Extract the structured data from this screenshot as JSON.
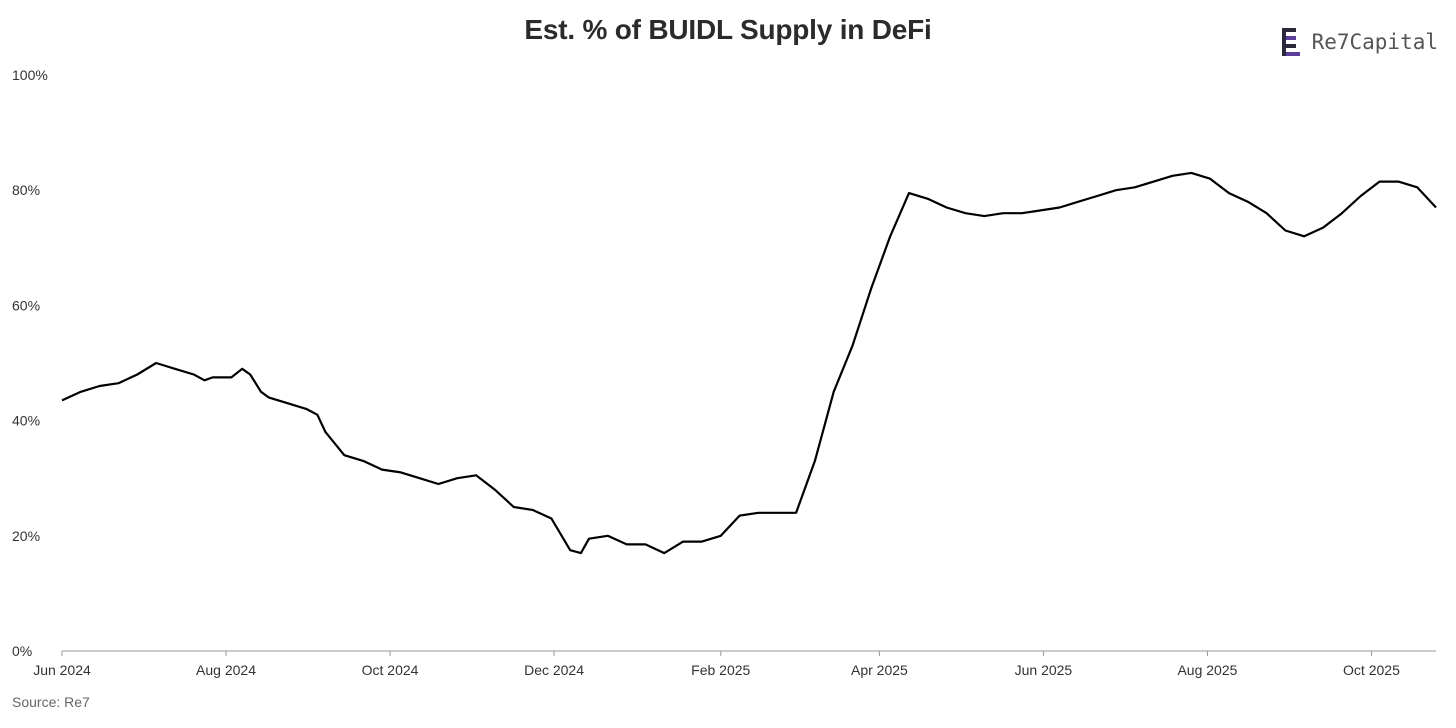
{
  "header": {
    "title": "Est. % of BUIDL Supply in DeFi",
    "brand": "Re7Capital",
    "brand_icon": "re7-logo-icon"
  },
  "footer": {
    "source": "Source: Re7"
  },
  "colors": {
    "line": "#000000",
    "axis": "#999999",
    "logo_purple": "#5b3e9b",
    "logo_dark": "#2a2a3a"
  },
  "chart_data": {
    "type": "line",
    "title": "Est. % of BUIDL Supply in DeFi",
    "xlabel": "",
    "ylabel": "",
    "ylim": [
      0,
      100
    ],
    "y_ticks": [
      "0%",
      "20%",
      "40%",
      "60%",
      "80%",
      "100%"
    ],
    "x_ticks": [
      "Jun 2024",
      "Aug 2024",
      "Oct 2024",
      "Dec 2024",
      "Feb 2025",
      "Apr 2025",
      "Jun 2025",
      "Aug 2025",
      "Oct 2025"
    ],
    "grid": false,
    "legend": "none",
    "series": [
      {
        "x": [
          "2024-06-01",
          "2024-06-08",
          "2024-06-15",
          "2024-06-22",
          "2024-06-29",
          "2024-07-06",
          "2024-07-13",
          "2024-07-20",
          "2024-07-24",
          "2024-07-27",
          "2024-08-03",
          "2024-08-07",
          "2024-08-10",
          "2024-08-14",
          "2024-08-17",
          "2024-08-24",
          "2024-08-31",
          "2024-09-04",
          "2024-09-07",
          "2024-09-14",
          "2024-09-21",
          "2024-09-28",
          "2024-10-05",
          "2024-10-12",
          "2024-10-19",
          "2024-10-26",
          "2024-11-02",
          "2024-11-09",
          "2024-11-16",
          "2024-11-23",
          "2024-11-30",
          "2024-12-07",
          "2024-12-11",
          "2024-12-14",
          "2024-12-21",
          "2024-12-28",
          "2025-01-04",
          "2025-01-11",
          "2025-01-18",
          "2025-01-25",
          "2025-02-01",
          "2025-02-08",
          "2025-02-15",
          "2025-02-22",
          "2025-03-01",
          "2025-03-08",
          "2025-03-15",
          "2025-03-22",
          "2025-03-29",
          "2025-04-05",
          "2025-04-12",
          "2025-04-19",
          "2025-04-26",
          "2025-05-03",
          "2025-05-10",
          "2025-05-17",
          "2025-05-24",
          "2025-05-31",
          "2025-06-07",
          "2025-06-14",
          "2025-06-21",
          "2025-06-28",
          "2025-07-05",
          "2025-07-12",
          "2025-07-19",
          "2025-07-26",
          "2025-08-02",
          "2025-08-09",
          "2025-08-16",
          "2025-08-23",
          "2025-08-30",
          "2025-09-06",
          "2025-09-13",
          "2025-09-20",
          "2025-09-27",
          "2025-10-04",
          "2025-10-11",
          "2025-10-18",
          "2025-10-25"
        ],
        "y": [
          43.5,
          45,
          46,
          46.5,
          48,
          50,
          49,
          48,
          47,
          47.5,
          47.5,
          49,
          48,
          45,
          44,
          43,
          42,
          41,
          38,
          34,
          33,
          31.5,
          31,
          30,
          29,
          30,
          30.5,
          28,
          25,
          24.5,
          23,
          17.5,
          17,
          19.5,
          20,
          18.5,
          18.5,
          17,
          19,
          19,
          20,
          23.5,
          24,
          24,
          24,
          33,
          45,
          53,
          63,
          72,
          79.5,
          78.5,
          77,
          76,
          75.5,
          76,
          76,
          76.5,
          77,
          78,
          79,
          80,
          80.5,
          81.5,
          82.5,
          83,
          82,
          79.5,
          78,
          76,
          73,
          72,
          73.5,
          76,
          79,
          81.5,
          81.5,
          80.5,
          77
        ]
      }
    ]
  }
}
